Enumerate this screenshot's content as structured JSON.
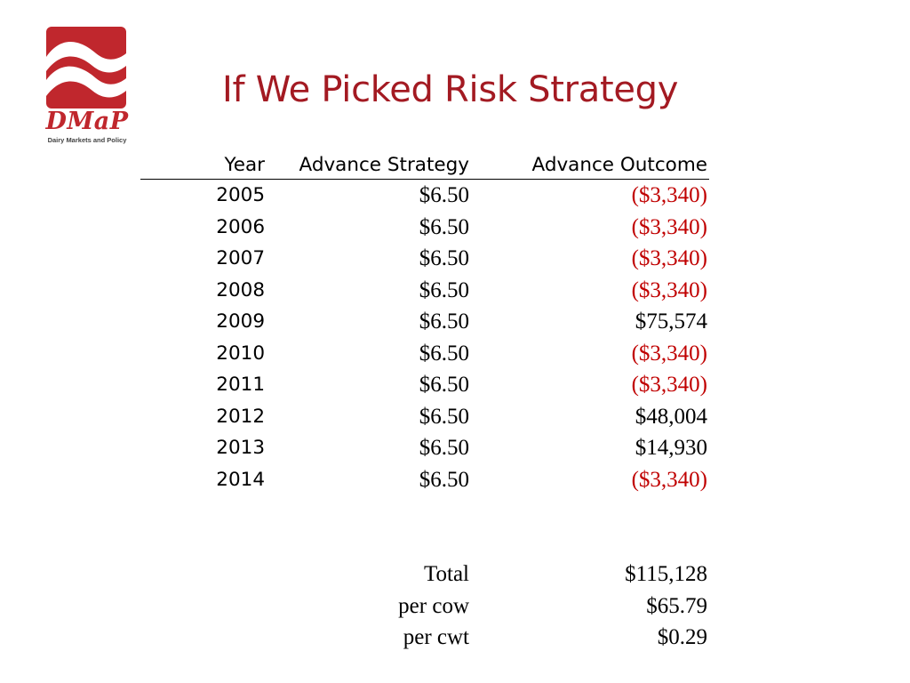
{
  "logo": {
    "wordmark": "DMaP",
    "subtitle": "Dairy Markets and Policy",
    "color": "#c0272d"
  },
  "title": "If We Picked Risk Strategy",
  "table": {
    "headers": [
      "Year",
      "Advance Strategy",
      "Advance Outcome"
    ],
    "rows": [
      {
        "year": "2005",
        "strategy": "$6.50",
        "outcome": "($3,340)",
        "negative": true
      },
      {
        "year": "2006",
        "strategy": "$6.50",
        "outcome": "($3,340)",
        "negative": true
      },
      {
        "year": "2007",
        "strategy": "$6.50",
        "outcome": "($3,340)",
        "negative": true
      },
      {
        "year": "2008",
        "strategy": "$6.50",
        "outcome": "($3,340)",
        "negative": true
      },
      {
        "year": "2009",
        "strategy": "$6.50",
        "outcome": "$75,574",
        "negative": false
      },
      {
        "year": "2010",
        "strategy": "$6.50",
        "outcome": "($3,340)",
        "negative": true
      },
      {
        "year": "2011",
        "strategy": "$6.50",
        "outcome": "($3,340)",
        "negative": true
      },
      {
        "year": "2012",
        "strategy": "$6.50",
        "outcome": "$48,004",
        "negative": false
      },
      {
        "year": "2013",
        "strategy": "$6.50",
        "outcome": "$14,930",
        "negative": false
      },
      {
        "year": "2014",
        "strategy": "$6.50",
        "outcome": "($3,340)",
        "negative": true
      }
    ]
  },
  "summary": [
    {
      "label": "Total",
      "value": "$115,128"
    },
    {
      "label": "per cow",
      "value": "$65.79"
    },
    {
      "label": "per cwt",
      "value": "$0.29"
    }
  ],
  "colors": {
    "title": "#a31a22",
    "negative": "#c00000"
  }
}
